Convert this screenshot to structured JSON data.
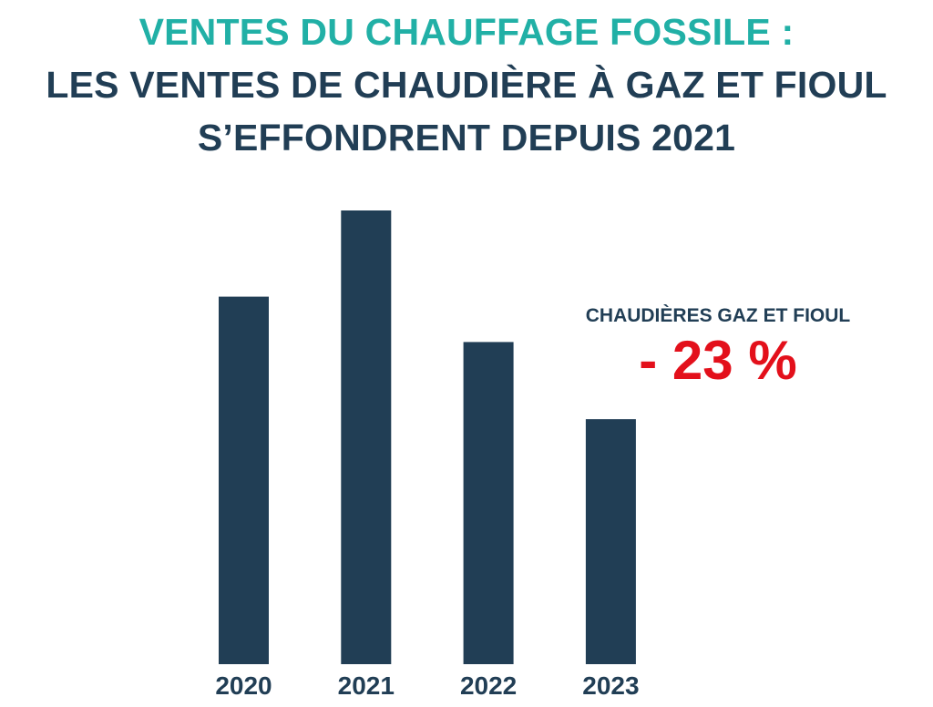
{
  "header": {
    "title": "VENTES DU CHAUFFAGE FOSSILE :",
    "subtitle_line1": "LES VENTES DE CHAUDIÈRE À GAZ ET FIOUL",
    "subtitle_line2": "S’EFFONDRENT DEPUIS 2021"
  },
  "annotation": {
    "label": "CHAUDIÈRES GAZ ET FIOUL",
    "value": "- 23 %"
  },
  "colors": {
    "title": "#21b0a6",
    "text": "#213e55",
    "bar": "#213e55",
    "highlight": "#e3101b"
  },
  "chart_data": {
    "type": "bar",
    "categories": [
      "2020",
      "2021",
      "2022",
      "2023"
    ],
    "values": [
      81,
      100,
      71,
      54
    ],
    "ylim": [
      0,
      100
    ],
    "grid": false,
    "legend": "none"
  }
}
